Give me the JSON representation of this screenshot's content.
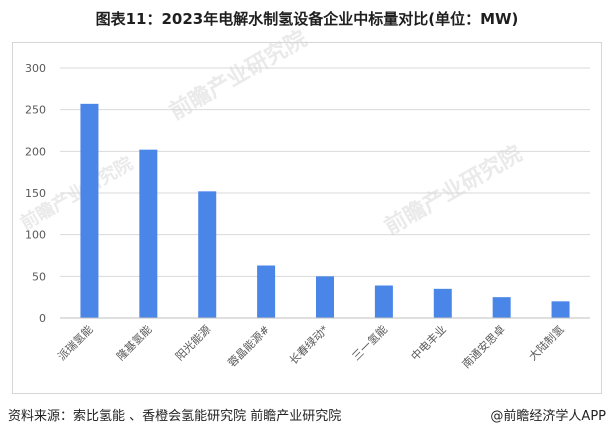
{
  "title": "图表11：2023年电解水制氢设备企业中标量对比(单位：MW)",
  "source": "资料来源：索比氢能 、香橙会氢能研究院 前瞻产业研究院",
  "brand": "@前瞻经济学人APP",
  "watermark": "前瞻产业研究院",
  "colors": {
    "bar": "#4a86e8",
    "grid": "#d9d9d9",
    "axis": "#bfbfbf"
  },
  "chart_data": {
    "type": "bar",
    "title": "图表11：2023年电解水制氢设备企业中标量对比(单位：MW)",
    "categories": [
      "派瑞氢能",
      "隆基氢能",
      "阳光能源",
      "蓉晶能源#",
      "长春绿动*",
      "三一氢能",
      "中电丰业",
      "南通安思卓",
      "大陆制氢"
    ],
    "values": [
      257,
      202,
      152,
      63,
      50,
      39,
      35,
      25,
      20
    ],
    "ylim": [
      0,
      300
    ],
    "yticks": [
      0,
      50,
      100,
      150,
      200,
      250,
      300
    ],
    "xlabel": "",
    "ylabel": "",
    "grid": true,
    "legend": "none"
  }
}
